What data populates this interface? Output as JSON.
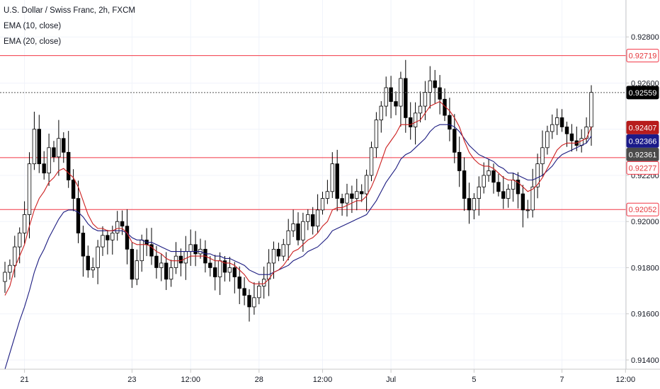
{
  "legend": {
    "title": "U.S. Dollar / Swiss Franc, 2h, FXCM",
    "ema10": "EMA (10, close)",
    "ema20": "EMA (20, close)"
  },
  "colors": {
    "up": "#ffffff",
    "down": "#000000",
    "wick": "#000000",
    "ema10": "#cc1f1f",
    "ema20": "#1b1b80",
    "hline": "#f23645",
    "last_price": "#000000"
  },
  "chart_data": {
    "type": "candlestick",
    "symbol": "U.S. Dollar / Swiss Franc, 2h, FXCM",
    "ylim": [
      0.9136,
      0.9296
    ],
    "y_ticks": [
      0.914,
      0.916,
      0.918,
      0.92,
      0.922,
      0.924,
      0.926,
      0.928
    ],
    "y_tick_labels": [
      "0.91400",
      "0.91600",
      "0.91800",
      "0.92000",
      "0.92200",
      "0.92400",
      "0.92600",
      "0.92800"
    ],
    "x_ticks": [
      {
        "label": "21",
        "bar": 4
      },
      {
        "label": "23",
        "bar": 26
      },
      {
        "label": "12:00",
        "bar": 38
      },
      {
        "label": "28",
        "bar": 52
      },
      {
        "label": "12:00",
        "bar": 65
      },
      {
        "label": "Jul",
        "bar": 79
      },
      {
        "label": "5",
        "bar": 96
      },
      {
        "label": "7",
        "bar": 114
      },
      {
        "label": "12:00",
        "bar": 127
      }
    ],
    "horizontal_lines": [
      0.92719,
      0.92277,
      0.92052
    ],
    "price_labels": [
      {
        "label": "0.92719",
        "value": 0.92719,
        "style": "outline-red"
      },
      {
        "label": "0.92559",
        "value": 0.92559,
        "style": "black"
      },
      {
        "label": "0.92407",
        "value": 0.92407,
        "style": "dark-red"
      },
      {
        "label": "0.92366",
        "value": 0.92366,
        "style": "navy"
      },
      {
        "label": "0.92361",
        "value": 0.92361,
        "style": "gray"
      },
      {
        "label": "0.92277",
        "value": 0.92277,
        "style": "outline-red"
      },
      {
        "label": "0.92052",
        "value": 0.92052,
        "style": "outline-red"
      }
    ],
    "last_price": 0.92559,
    "close": [
      0.9178,
      0.9181,
      0.9189,
      0.9195,
      0.9203,
      0.9225,
      0.924,
      0.9225,
      0.9221,
      0.9232,
      0.9228,
      0.9236,
      0.923,
      0.9218,
      0.921,
      0.9195,
      0.9185,
      0.9179,
      0.918,
      0.9189,
      0.9194,
      0.9192,
      0.9195,
      0.92,
      0.9198,
      0.9188,
      0.9175,
      0.9183,
      0.9192,
      0.919,
      0.9185,
      0.918,
      0.9182,
      0.9175,
      0.918,
      0.9185,
      0.9182,
      0.9187,
      0.919,
      0.9186,
      0.9188,
      0.9182,
      0.918,
      0.9176,
      0.9183,
      0.9178,
      0.918,
      0.9176,
      0.9171,
      0.9168,
      0.9163,
      0.9167,
      0.9172,
      0.9175,
      0.9182,
      0.9188,
      0.9185,
      0.919,
      0.9196,
      0.9199,
      0.9192,
      0.92,
      0.9203,
      0.9198,
      0.9205,
      0.921,
      0.9213,
      0.9225,
      0.921,
      0.9208,
      0.9212,
      0.921,
      0.9213,
      0.9212,
      0.922,
      0.9232,
      0.9244,
      0.925,
      0.9258,
      0.9252,
      0.925,
      0.9262,
      0.9245,
      0.9241,
      0.9247,
      0.925,
      0.9256,
      0.9261,
      0.9258,
      0.9253,
      0.9246,
      0.924,
      0.923,
      0.9222,
      0.921,
      0.9205,
      0.921,
      0.9215,
      0.922,
      0.9222,
      0.9217,
      0.9213,
      0.921,
      0.9214,
      0.9218,
      0.9212,
      0.9205,
      0.9205,
      0.9215,
      0.9225,
      0.9232,
      0.9239,
      0.9242,
      0.9245,
      0.9241,
      0.9238,
      0.9235,
      0.9233,
      0.9236,
      0.9241,
      0.9256
    ],
    "ema10": [
      0.9168,
      0.9172,
      0.918,
      0.9185,
      0.919,
      0.9198,
      0.9205,
      0.921,
      0.9213,
      0.9217,
      0.9219,
      0.9222,
      0.9223,
      0.9221,
      0.9219,
      0.9215,
      0.9209,
      0.9203,
      0.9199,
      0.9197,
      0.9197,
      0.9196,
      0.9196,
      0.9197,
      0.9197,
      0.9195,
      0.9191,
      0.919,
      0.919,
      0.919,
      0.9189,
      0.9187,
      0.9186,
      0.9184,
      0.9183,
      0.9183,
      0.9183,
      0.9184,
      0.9185,
      0.9185,
      0.9185,
      0.9185,
      0.9184,
      0.9183,
      0.9183,
      0.9182,
      0.9182,
      0.9181,
      0.9179,
      0.9177,
      0.9174,
      0.9173,
      0.9173,
      0.9173,
      0.9175,
      0.9178,
      0.9179,
      0.9181,
      0.9184,
      0.9187,
      0.9188,
      0.919,
      0.9192,
      0.9193,
      0.9195,
      0.9198,
      0.92,
      0.9205,
      0.9206,
      0.9206,
      0.9207,
      0.9208,
      0.9209,
      0.9209,
      0.9211,
      0.9215,
      0.922,
      0.9226,
      0.9232,
      0.9235,
      0.9238,
      0.9242,
      0.9242,
      0.9242,
      0.9243,
      0.9244,
      0.9247,
      0.925,
      0.9251,
      0.9252,
      0.925,
      0.9248,
      0.9245,
      0.9241,
      0.9235,
      0.923,
      0.9227,
      0.9225,
      0.9224,
      0.9224,
      0.9223,
      0.9221,
      0.9219,
      0.9218,
      0.9218,
      0.9217,
      0.9215,
      0.9213,
      0.9214,
      0.9216,
      0.9219,
      0.9223,
      0.9227,
      0.9231,
      0.9233,
      0.9234,
      0.9234,
      0.9234,
      0.9235,
      0.9236,
      0.9241
    ],
    "ema20": [
      0.9136,
      0.9143,
      0.915,
      0.9157,
      0.9163,
      0.917,
      0.9178,
      0.9184,
      0.9188,
      0.9193,
      0.9197,
      0.9201,
      0.9204,
      0.9205,
      0.9205,
      0.9204,
      0.9202,
      0.9199,
      0.9197,
      0.9196,
      0.9196,
      0.9196,
      0.9196,
      0.9196,
      0.9196,
      0.9195,
      0.9193,
      0.9192,
      0.9192,
      0.9191,
      0.9191,
      0.919,
      0.9189,
      0.9188,
      0.9187,
      0.9187,
      0.9187,
      0.9187,
      0.9187,
      0.9187,
      0.9187,
      0.9186,
      0.9186,
      0.9185,
      0.9185,
      0.9184,
      0.9184,
      0.9183,
      0.9182,
      0.9181,
      0.9179,
      0.9178,
      0.9177,
      0.9177,
      0.9177,
      0.9178,
      0.9179,
      0.918,
      0.9181,
      0.9183,
      0.9184,
      0.9185,
      0.9187,
      0.9188,
      0.9189,
      0.9191,
      0.9193,
      0.9196,
      0.9197,
      0.9198,
      0.9199,
      0.92,
      0.9201,
      0.9202,
      0.9203,
      0.9206,
      0.9209,
      0.9213,
      0.9217,
      0.922,
      0.9223,
      0.9227,
      0.9229,
      0.923,
      0.9232,
      0.9234,
      0.9236,
      0.9239,
      0.9241,
      0.9242,
      0.9242,
      0.9242,
      0.9241,
      0.9239,
      0.9236,
      0.9233,
      0.9231,
      0.9229,
      0.9228,
      0.9227,
      0.9226,
      0.9224,
      0.9223,
      0.9221,
      0.9221,
      0.922,
      0.9219,
      0.9218,
      0.9218,
      0.9219,
      0.922,
      0.9222,
      0.9224,
      0.9227,
      0.9229,
      0.923,
      0.9231,
      0.9232,
      0.9233,
      0.9234,
      0.9237
    ]
  }
}
